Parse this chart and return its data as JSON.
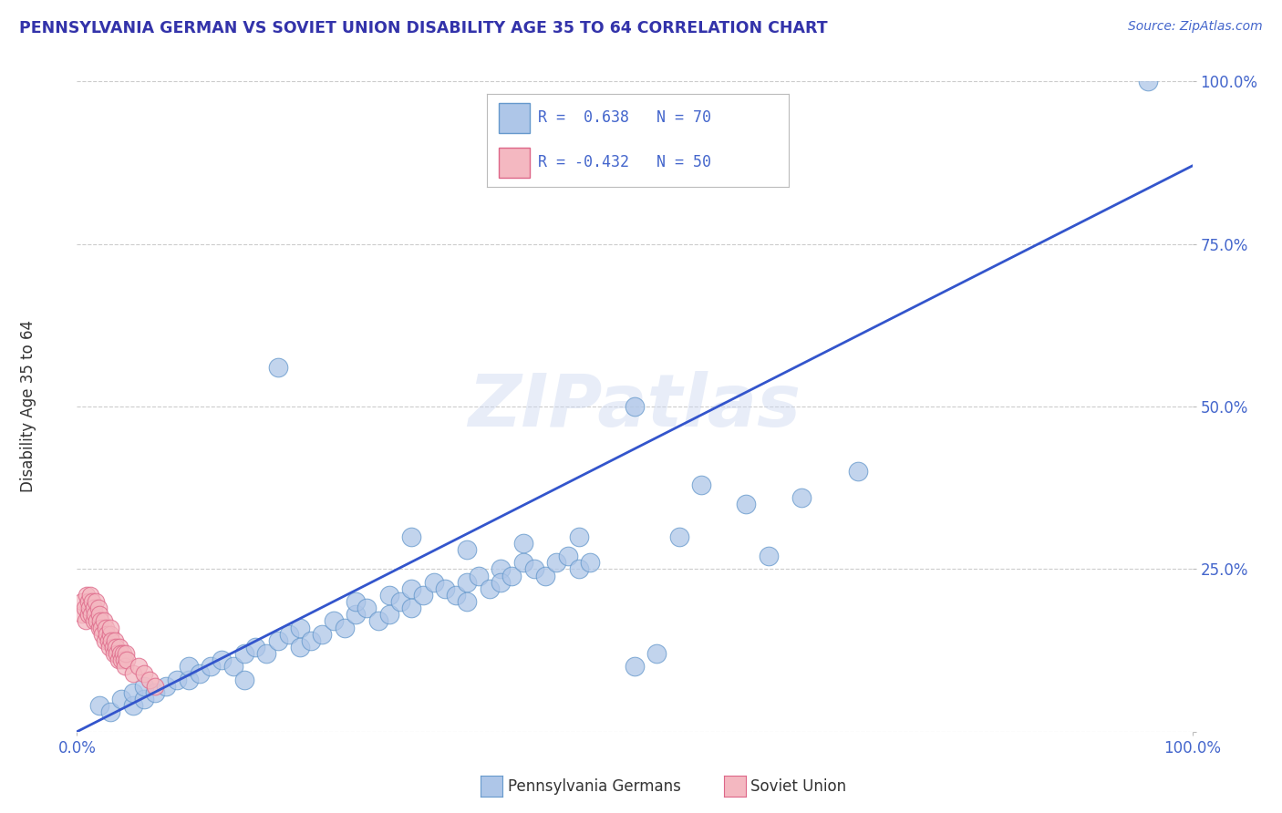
{
  "title": "PENNSYLVANIA GERMAN VS SOVIET UNION DISABILITY AGE 35 TO 64 CORRELATION CHART",
  "source": "Source: ZipAtlas.com",
  "ylabel": "Disability Age 35 to 64",
  "xlim": [
    0,
    1.0
  ],
  "ylim": [
    0,
    1.0
  ],
  "ytick_positions": [
    0.0,
    0.25,
    0.5,
    0.75,
    1.0
  ],
  "background_color": "#ffffff",
  "title_color": "#3333aa",
  "axis_label_color": "#4466cc",
  "tick_color": "#4466cc",
  "grid_color": "#cccccc",
  "scatter_blue_color": "#aec6e8",
  "scatter_blue_edge": "#6699cc",
  "scatter_pink_color": "#f4b8c1",
  "scatter_pink_edge": "#dd6688",
  "line_color": "#3355cc",
  "blue_scatter_x": [
    0.02,
    0.03,
    0.04,
    0.05,
    0.05,
    0.06,
    0.06,
    0.07,
    0.08,
    0.09,
    0.1,
    0.1,
    0.11,
    0.12,
    0.13,
    0.14,
    0.15,
    0.15,
    0.16,
    0.17,
    0.18,
    0.19,
    0.2,
    0.2,
    0.21,
    0.22,
    0.23,
    0.24,
    0.25,
    0.25,
    0.26,
    0.27,
    0.28,
    0.28,
    0.29,
    0.3,
    0.3,
    0.31,
    0.32,
    0.33,
    0.34,
    0.35,
    0.35,
    0.36,
    0.37,
    0.38,
    0.38,
    0.39,
    0.4,
    0.41,
    0.42,
    0.43,
    0.44,
    0.45,
    0.46,
    0.5,
    0.52,
    0.54,
    0.56,
    0.6,
    0.62,
    0.65,
    0.7,
    0.3,
    0.35,
    0.4,
    0.45,
    0.5,
    0.18,
    0.96
  ],
  "blue_scatter_y": [
    0.04,
    0.03,
    0.05,
    0.04,
    0.06,
    0.05,
    0.07,
    0.06,
    0.07,
    0.08,
    0.08,
    0.1,
    0.09,
    0.1,
    0.11,
    0.1,
    0.12,
    0.08,
    0.13,
    0.12,
    0.14,
    0.15,
    0.13,
    0.16,
    0.14,
    0.15,
    0.17,
    0.16,
    0.18,
    0.2,
    0.19,
    0.17,
    0.21,
    0.18,
    0.2,
    0.22,
    0.19,
    0.21,
    0.23,
    0.22,
    0.21,
    0.23,
    0.2,
    0.24,
    0.22,
    0.25,
    0.23,
    0.24,
    0.26,
    0.25,
    0.24,
    0.26,
    0.27,
    0.25,
    0.26,
    0.1,
    0.12,
    0.3,
    0.38,
    0.35,
    0.27,
    0.36,
    0.4,
    0.3,
    0.28,
    0.29,
    0.3,
    0.5,
    0.56,
    1.0
  ],
  "pink_scatter_x": [
    0.005,
    0.005,
    0.007,
    0.008,
    0.009,
    0.01,
    0.01,
    0.011,
    0.012,
    0.013,
    0.014,
    0.015,
    0.015,
    0.016,
    0.017,
    0.018,
    0.019,
    0.02,
    0.02,
    0.021,
    0.022,
    0.023,
    0.024,
    0.025,
    0.026,
    0.027,
    0.028,
    0.029,
    0.03,
    0.03,
    0.031,
    0.032,
    0.033,
    0.034,
    0.035,
    0.036,
    0.037,
    0.038,
    0.039,
    0.04,
    0.041,
    0.042,
    0.043,
    0.044,
    0.045,
    0.05,
    0.055,
    0.06,
    0.065,
    0.07
  ],
  "pink_scatter_y": [
    0.18,
    0.2,
    0.19,
    0.17,
    0.21,
    0.18,
    0.2,
    0.19,
    0.21,
    0.18,
    0.2,
    0.17,
    0.19,
    0.18,
    0.2,
    0.17,
    0.19,
    0.16,
    0.18,
    0.17,
    0.16,
    0.15,
    0.17,
    0.14,
    0.16,
    0.15,
    0.14,
    0.13,
    0.15,
    0.16,
    0.14,
    0.13,
    0.12,
    0.14,
    0.13,
    0.12,
    0.11,
    0.13,
    0.12,
    0.11,
    0.12,
    0.11,
    0.1,
    0.12,
    0.11,
    0.09,
    0.1,
    0.09,
    0.08,
    0.07
  ],
  "blue_line_x0": 0.0,
  "blue_line_x1": 1.0,
  "blue_line_y0": 0.0,
  "blue_line_y1": 0.87
}
